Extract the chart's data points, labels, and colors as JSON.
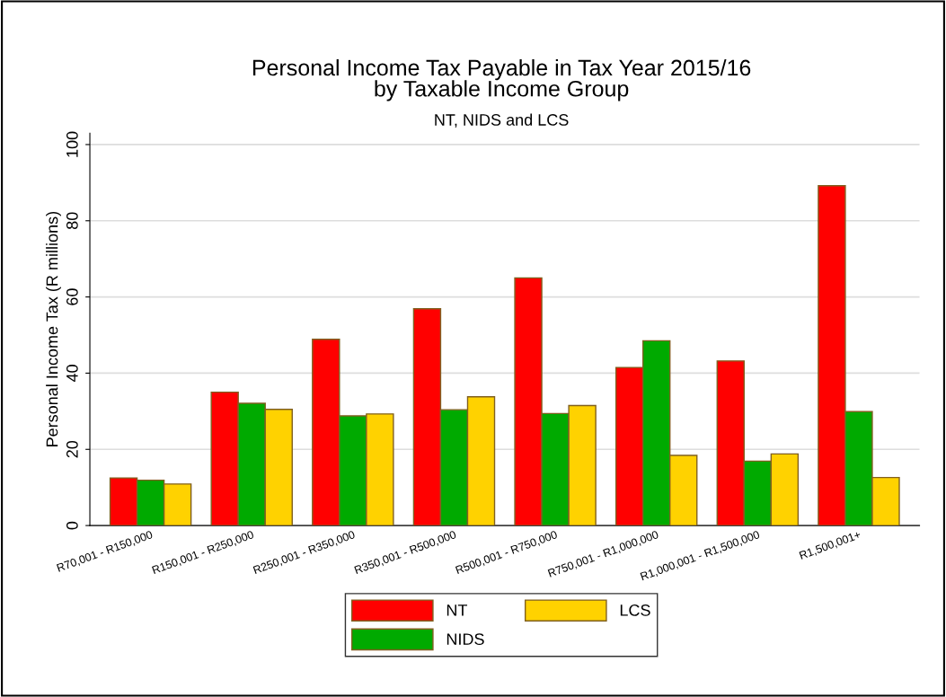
{
  "chart_data": {
    "type": "bar",
    "title": "Personal Income Tax Payable in Tax Year 2015/16\nby Taxable Income Group",
    "subtitle": "NT, NIDS and LCS",
    "ylabel": "Personal Income Tax (R millions)",
    "categories": [
      "R70,001 - R150,000",
      "R150,001 - R250,000",
      "R250,001 - R350,000",
      "R350,001 - R500,000",
      "R500,001 - R750,000",
      "R750,001 - R1,000,000",
      "R1,000,001 - R1,500,000",
      "R1,500,001+"
    ],
    "series": [
      {
        "name": "NT",
        "color": "#ff0000",
        "values": [
          12.5,
          35.0,
          48.9,
          56.9,
          65.0,
          41.5,
          43.2,
          89.2
        ]
      },
      {
        "name": "NIDS",
        "color": "#00aa00",
        "values": [
          11.9,
          32.1,
          28.8,
          30.4,
          29.4,
          48.5,
          16.9,
          29.9
        ]
      },
      {
        "name": "LCS",
        "color": "#ffd200",
        "values": [
          10.9,
          30.5,
          29.3,
          33.8,
          31.5,
          18.4,
          18.8,
          12.6
        ]
      }
    ],
    "ylim": [
      0,
      103
    ],
    "yticks": [
      0,
      20,
      40,
      60,
      80,
      100
    ],
    "grid": "y",
    "legend": "bottom"
  }
}
